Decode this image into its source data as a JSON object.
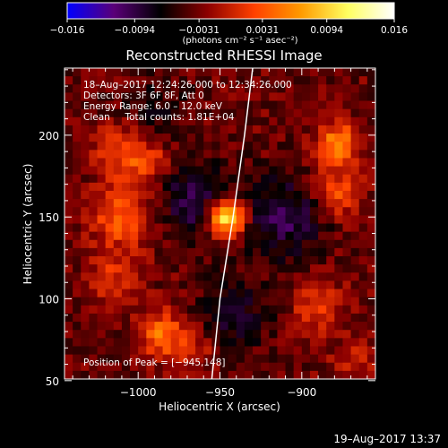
{
  "chart_data": {
    "type": "heatmap",
    "title": "Reconstructed RHESSI Image",
    "xlabel": "Heliocentric X (arcsec)",
    "ylabel": "Heliocentric Y (arcsec)",
    "xlim": [
      -1045,
      -855
    ],
    "ylim": [
      51,
      241
    ],
    "xticks": [
      -1000,
      -950,
      -900
    ],
    "yticks": [
      50,
      100,
      150,
      200
    ],
    "xtick_labels": [
      "−1000",
      "−950",
      "−900"
    ],
    "ytick_labels": [
      "50",
      "100",
      "150",
      "200"
    ],
    "colorbar": {
      "range": [
        -0.016,
        0.016
      ],
      "tick_values": [
        -0.016,
        -0.0094,
        -0.0031,
        0.0031,
        0.0094,
        0.016
      ],
      "tick_labels": [
        "−0.016",
        "−0.0094",
        "−0.0031",
        "0.0031",
        "0.0094",
        "0.016"
      ],
      "unit_label": "(photons cm⁻² s⁻¹ asec⁻²)",
      "colors": [
        "#0000ff",
        "#5a0078",
        "#000000",
        "#8c0000",
        "#ff4000",
        "#ff9a00",
        "#ffff60",
        "#ffffff"
      ]
    },
    "info_lines": [
      "18–Aug–2017 12:24:26.000 to 12:34:26.000",
      "Detectors: 3F 6F 8F, Att 0",
      "Energy Range: 6.0 – 12.0 keV",
      "Clean     Total counts: 1.81E+04"
    ],
    "peak_label": "Position of Peak = [−945,148]",
    "peak_position": [
      -945,
      148
    ],
    "limb_curve": [
      [
        -955,
        51
      ],
      [
        -950,
        100
      ],
      [
        -942,
        150
      ],
      [
        -935,
        200
      ],
      [
        -930,
        241
      ]
    ],
    "sources": [
      {
        "x": -946,
        "y": 150,
        "amplitude": 0.017,
        "sigma": 8
      },
      {
        "x": -1010,
        "y": 150,
        "amplitude": 0.007,
        "sigma": 13
      },
      {
        "x": -1010,
        "y": 190,
        "amplitude": 0.006,
        "sigma": 11
      },
      {
        "x": -993,
        "y": 183,
        "amplitude": 0.005,
        "sigma": 9
      },
      {
        "x": -1015,
        "y": 112,
        "amplitude": 0.0045,
        "sigma": 11
      },
      {
        "x": -985,
        "y": 78,
        "amplitude": 0.008,
        "sigma": 10
      },
      {
        "x": -965,
        "y": 68,
        "amplitude": 0.004,
        "sigma": 8
      },
      {
        "x": -878,
        "y": 195,
        "amplitude": 0.009,
        "sigma": 9
      },
      {
        "x": -878,
        "y": 165,
        "amplitude": 0.0065,
        "sigma": 10
      },
      {
        "x": -890,
        "y": 95,
        "amplitude": 0.005,
        "sigma": 11
      },
      {
        "x": -870,
        "y": 60,
        "amplitude": 0.0035,
        "sigma": 9
      }
    ],
    "negative_sources": [
      {
        "x": -965,
        "y": 160,
        "amplitude": -0.006,
        "sigma": 16
      },
      {
        "x": -912,
        "y": 150,
        "amplitude": -0.006,
        "sigma": 18
      },
      {
        "x": -940,
        "y": 90,
        "amplitude": -0.004,
        "sigma": 16
      },
      {
        "x": -990,
        "y": 215,
        "amplitude": -0.003,
        "sigma": 14
      }
    ],
    "background": -0.0035,
    "grid": false
  },
  "footer": {
    "timestamp": "19–Aug–2017 13:37"
  }
}
